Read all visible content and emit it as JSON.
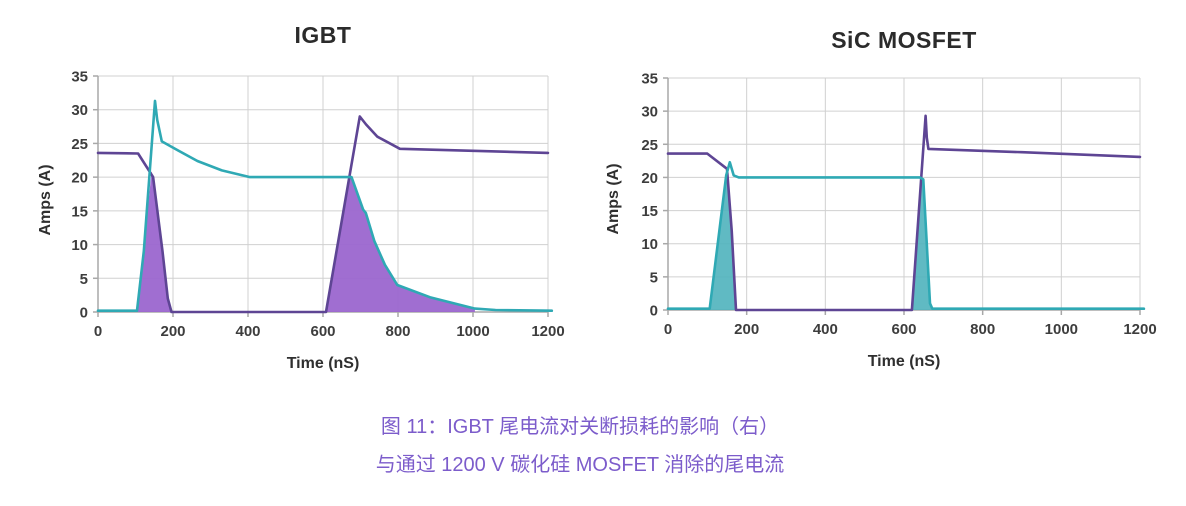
{
  "caption": {
    "line1": "图 11：IGBT 尾电流对关断损耗的影响（右）",
    "line2": "与通过 1200 V 碳化硅 MOSFET 消除的尾电流",
    "color": "#7C5CCB"
  },
  "style": {
    "grid_color": "#d0d0d0",
    "axis_color": "#a8a8a8",
    "tick_color": "#3d3d3d",
    "purple_line": "#5E4594",
    "teal_line": "#2FA9B4",
    "purple_fill": "#9B66CF",
    "teal_fill": "#4FB3BD"
  },
  "chart_data": [
    {
      "type": "line",
      "title": "IGBT",
      "xlabel": "Time (nS)",
      "ylabel": "Amps (A)",
      "xlim": [
        0,
        1200
      ],
      "ylim": [
        0,
        35
      ],
      "xticks": [
        0,
        200,
        400,
        600,
        800,
        1000,
        1200
      ],
      "yticks": [
        0,
        5,
        10,
        15,
        20,
        25,
        30,
        35
      ],
      "grid": "on",
      "legend": "none",
      "fills": [
        {
          "name": "igbt-turnoff-tail-area",
          "color": "#9B66CF",
          "opacity": 0.95,
          "points": [
            [
              104,
              0
            ],
            [
              143,
              20.8
            ],
            [
              147,
              20
            ],
            [
              172,
              9
            ],
            [
              186,
              2
            ],
            [
              196,
              0
            ]
          ]
        },
        {
          "name": "igbt-turnoff-tail-area-2",
          "color": "#9B66CF",
          "opacity": 0.95,
          "points": [
            [
              608,
              0
            ],
            [
              670,
              20
            ],
            [
              676,
              20
            ],
            [
              707,
              15.2
            ],
            [
              714,
              14.7
            ],
            [
              737,
              10.5
            ],
            [
              765,
              7
            ],
            [
              798,
              4
            ],
            [
              885,
              2.2
            ],
            [
              1005,
              0.4
            ],
            [
              1005,
              0
            ]
          ]
        }
      ],
      "series": [
        {
          "name": "purple-trace-igbt-current",
          "color": "#5E4594",
          "points": [
            [
              0,
              23.6
            ],
            [
              107,
              23.5
            ],
            [
              147,
              20
            ],
            [
              172,
              9
            ],
            [
              186,
              2
            ],
            [
              196,
              0
            ],
            [
              608,
              0
            ],
            [
              698,
              29
            ],
            [
              715,
              27.8
            ],
            [
              745,
              26
            ],
            [
              805,
              24.2
            ],
            [
              1000,
              23.9
            ],
            [
              1200,
              23.6
            ]
          ]
        },
        {
          "name": "teal-trace-complementary-current",
          "color": "#2FA9B4",
          "points": [
            [
              0,
              0.2
            ],
            [
              104,
              0.2
            ],
            [
              122,
              9
            ],
            [
              152,
              31.3
            ],
            [
              158,
              28.5
            ],
            [
              170,
              25.3
            ],
            [
              215,
              23.9
            ],
            [
              265,
              22.4
            ],
            [
              330,
              21
            ],
            [
              405,
              20
            ],
            [
              676,
              20
            ],
            [
              707,
              15.2
            ],
            [
              714,
              14.7
            ],
            [
              737,
              10.5
            ],
            [
              765,
              7
            ],
            [
              798,
              4
            ],
            [
              885,
              2.2
            ],
            [
              1005,
              0.5
            ],
            [
              1060,
              0.3
            ],
            [
              1210,
              0.2
            ]
          ]
        }
      ]
    },
    {
      "type": "line",
      "title": "SiC MOSFET",
      "xlabel": "Time (nS)",
      "ylabel": "Amps (A)",
      "xlim": [
        0,
        1200
      ],
      "ylim": [
        0,
        35
      ],
      "xticks": [
        0,
        200,
        400,
        600,
        800,
        1000,
        1200
      ],
      "yticks": [
        0,
        5,
        10,
        15,
        20,
        25,
        30,
        35
      ],
      "grid": "on",
      "legend": "none",
      "fills": [
        {
          "name": "mosfet-switching-area-1",
          "color": "#4FB3BD",
          "opacity": 0.9,
          "points": [
            [
              108,
              0
            ],
            [
              150,
              20.6
            ],
            [
              162,
              12
            ],
            [
              173,
              0
            ]
          ]
        },
        {
          "name": "mosfet-switching-area-2",
          "color": "#4FB3BD",
          "opacity": 0.9,
          "points": [
            [
              622,
              0
            ],
            [
              645,
              20
            ],
            [
              650,
              19.6
            ],
            [
              666,
              1
            ],
            [
              670,
              0
            ]
          ]
        }
      ],
      "series": [
        {
          "name": "purple-trace-mosfet-current",
          "color": "#5E4594",
          "points": [
            [
              0,
              23.6
            ],
            [
              100,
              23.6
            ],
            [
              150,
              21.3
            ],
            [
              162,
              12
            ],
            [
              173,
              0
            ],
            [
              620,
              0
            ],
            [
              655,
              29.3
            ],
            [
              658,
              26
            ],
            [
              662,
              24.3
            ],
            [
              900,
              23.8
            ],
            [
              1200,
              23.1
            ]
          ]
        },
        {
          "name": "teal-trace-complementary-current",
          "color": "#2FA9B4",
          "points": [
            [
              0,
              0.2
            ],
            [
              106,
              0.2
            ],
            [
              148,
              20.3
            ],
            [
              157,
              22.3
            ],
            [
              167,
              20.3
            ],
            [
              180,
              20
            ],
            [
              640,
              20
            ],
            [
              649,
              19.7
            ],
            [
              666,
              1
            ],
            [
              672,
              0.2
            ],
            [
              1210,
              0.2
            ]
          ]
        }
      ]
    }
  ]
}
